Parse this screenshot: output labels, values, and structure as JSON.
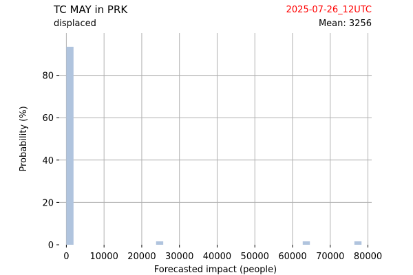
{
  "header": {
    "title": "TC MAY in PRK",
    "subtitle": "displaced",
    "date": "2025-07-26_12UTC",
    "mean_label": "Mean:",
    "mean_value": "3256"
  },
  "colors": {
    "bar": "#b0c4de",
    "grid": "#b0b0b0",
    "date_text": "#ff0000"
  },
  "chart_data": {
    "type": "bar",
    "title": "TC MAY in PRK",
    "xlabel": "Forecasted impact (people)",
    "ylabel": "Probability (%)",
    "xlim": [
      -1900,
      81000
    ],
    "ylim": [
      0,
      100
    ],
    "xticks": [
      0,
      10000,
      20000,
      30000,
      40000,
      50000,
      60000,
      70000,
      80000
    ],
    "yticks": [
      0,
      20,
      40,
      60,
      80
    ],
    "grid": true,
    "bins": [
      {
        "x0": 0,
        "x1": 1900,
        "value": 93.5
      },
      {
        "x0": 23800,
        "x1": 25700,
        "value": 1.6
      },
      {
        "x0": 62700,
        "x1": 64600,
        "value": 1.6
      },
      {
        "x0": 76400,
        "x1": 78300,
        "value": 1.6
      }
    ]
  }
}
